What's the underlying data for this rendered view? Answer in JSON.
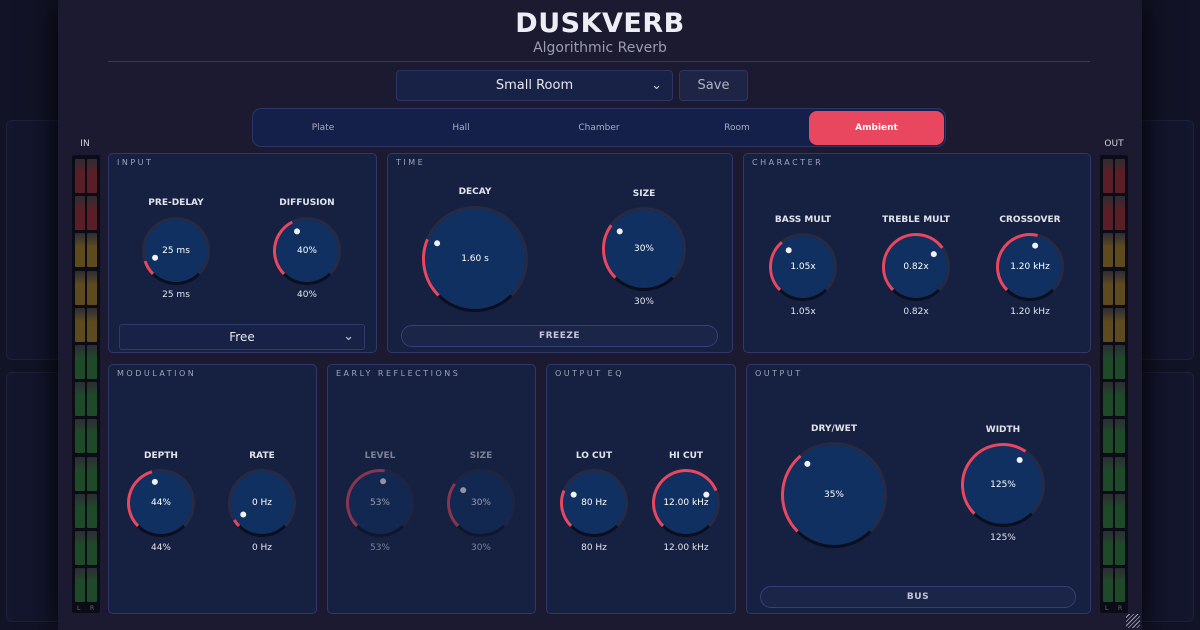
{
  "header": {
    "title": "DUSKVERB",
    "subtitle": "Algorithmic Reverb"
  },
  "preset": {
    "value": "Small Room",
    "save_label": "Save"
  },
  "tabs": [
    {
      "label": "Plate"
    },
    {
      "label": "Hall"
    },
    {
      "label": "Chamber"
    },
    {
      "label": "Room"
    },
    {
      "label": "Ambient",
      "active": true
    }
  ],
  "meters": {
    "in_label": "IN",
    "out_label": "OUT",
    "l": "L",
    "r": "R",
    "level": 0
  },
  "colors": {
    "accent": "#e8475f",
    "knob_fill": "#0f3060",
    "panel": "#162040"
  },
  "panels": {
    "input": {
      "title": "INPUT",
      "sync_value": "Free"
    },
    "time": {
      "title": "TIME",
      "freeze_label": "FREEZE"
    },
    "character": {
      "title": "CHARACTER"
    },
    "modulation": {
      "title": "MODULATION"
    },
    "early": {
      "title": "EARLY REFLECTIONS"
    },
    "eq": {
      "title": "OUTPUT EQ"
    },
    "output": {
      "title": "OUTPUT",
      "bus_label": "BUS"
    }
  },
  "knobs": [
    {
      "label": "PRE-DELAY",
      "value": "25 ms",
      "fraction": 0.1
    },
    {
      "label": "DIFFUSION",
      "value": "40%",
      "fraction": 0.4
    },
    {
      "label": "DECAY",
      "value": "1.60 s",
      "fraction": 0.25
    },
    {
      "label": "SIZE",
      "value": "30%",
      "fraction": 0.3
    },
    {
      "label": "BASS MULT",
      "value": "1.05x",
      "fraction": 0.35
    },
    {
      "label": "TREBLE MULT",
      "value": "0.82x",
      "fraction": 0.7
    },
    {
      "label": "CROSSOVER",
      "value": "1.20 kHz",
      "fraction": 0.55
    },
    {
      "label": "DEPTH",
      "value": "44%",
      "fraction": 0.44
    },
    {
      "label": "RATE",
      "value": "0 Hz",
      "fraction": 0.05
    },
    {
      "label": "LEVEL",
      "value": "53%",
      "fraction": 0.53
    },
    {
      "label": "SIZE",
      "value": "30%",
      "fraction": 0.3
    },
    {
      "label": "LO CUT",
      "value": "80 Hz",
      "fraction": 0.25
    },
    {
      "label": "HI CUT",
      "value": "12.00 kHz",
      "fraction": 0.75
    },
    {
      "label": "DRY/WET",
      "value": "35%",
      "fraction": 0.35
    },
    {
      "label": "WIDTH",
      "value": "125%",
      "fraction": 0.625
    }
  ]
}
